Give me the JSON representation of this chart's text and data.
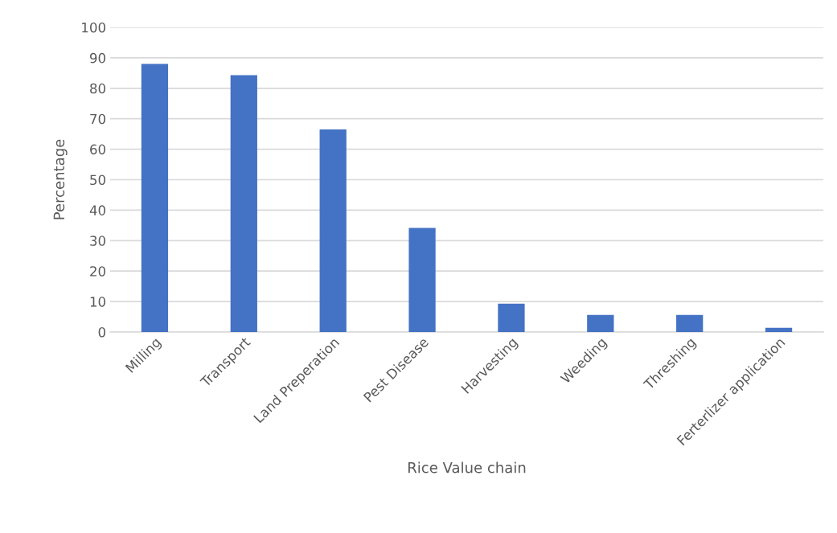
{
  "chart_data": {
    "type": "bar",
    "xlabel": "Rice Value chain",
    "ylabel": "Percentage",
    "categories": [
      "Milling",
      "Transport",
      "Land Preperation",
      "Pest Disease",
      "Harvesting",
      "Weeding",
      "Threshing",
      "Ferterlizer application"
    ],
    "values": [
      88,
      84.3,
      66.5,
      34.2,
      9.3,
      5.6,
      5.6,
      1.4
    ],
    "color": "#4472c4",
    "ylim": [
      0,
      100
    ],
    "yticks": [
      0,
      10,
      20,
      30,
      40,
      50,
      60,
      70,
      80,
      90,
      100
    ],
    "grid": "y"
  }
}
